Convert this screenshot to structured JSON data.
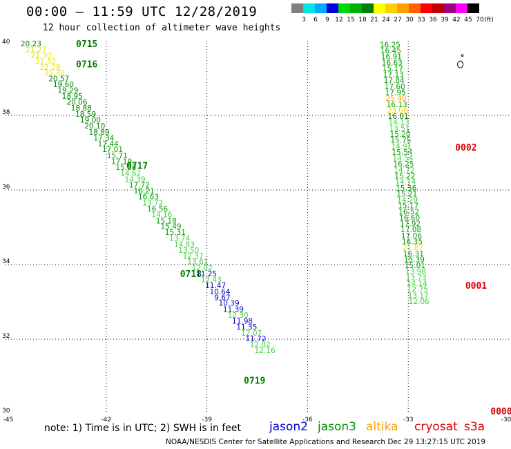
{
  "title": "00:00 – 11:59 UTC 12/28/2019",
  "subtitle": "12 hour collection of altimeter wave heights",
  "colorbar": {
    "unit": "(ft)",
    "ticks": [
      "3",
      "6",
      "9",
      "12",
      "15",
      "18",
      "21",
      "24",
      "27",
      "30",
      "33",
      "36",
      "39",
      "42",
      "45",
      "70"
    ],
    "colors": [
      "#7f7f7f",
      "#00e5e5",
      "#00a8ff",
      "#0000e0",
      "#00d800",
      "#00b000",
      "#008000",
      "#ffff00",
      "#ffd000",
      "#ffa000",
      "#ff6000",
      "#ff0000",
      "#c00000",
      "#a00080",
      "#ff00ff",
      "#000000"
    ]
  },
  "note": "note:  1) Time is in UTC;  2) SWH is in feet",
  "legend": [
    {
      "name": "jason2",
      "color": "#0000cc"
    },
    {
      "name": "jason3",
      "color": "#009000"
    },
    {
      "name": "altika",
      "color": "#ffa000"
    },
    {
      "name": "cryosat",
      "color": "#dd0000"
    },
    {
      "name": "s3a",
      "color": "#dd0000"
    }
  ],
  "credit": "NOAA/NESDIS Center for Satellite Applications and Research     Dec 29 13:27:15 UTC 2019",
  "chart_data": {
    "type": "scatter",
    "title": "00:00 – 11:59 UTC 12/28/2019",
    "xlim": [
      -45,
      -30
    ],
    "ylim": [
      30,
      40
    ],
    "x_ticks": [
      "-45",
      "-42",
      "-39",
      "-36",
      "-33",
      "-30"
    ],
    "y_ticks": [
      "40",
      "38",
      "36",
      "34",
      "32",
      "30"
    ],
    "grid": true,
    "tracks": [
      {
        "color_class": "green",
        "time_labels": [
          {
            "text": "0715",
            "lat": 39.93,
            "lon": -42.9,
            "color": "#008000"
          },
          {
            "text": "0716",
            "lat": 39.38,
            "lon": -42.9,
            "color": "#008000"
          },
          {
            "text": "0717",
            "lat": 36.66,
            "lon": -41.4,
            "color": "#008000"
          },
          {
            "text": "0718",
            "lat": 33.76,
            "lon": -39.8,
            "color": "#008000"
          },
          {
            "text": "0719",
            "lat": 30.9,
            "lon": -37.9,
            "color": "#008000"
          }
        ],
        "points": [
          {
            "lon": -44.55,
            "lat": 39.93,
            "v": "20.23",
            "c": "#008000"
          },
          {
            "lon": -44.4,
            "lat": 39.77,
            "v": "21.27",
            "c": "#e6e600"
          },
          {
            "lon": -44.25,
            "lat": 39.62,
            "v": "21.30",
            "c": "#e6e600"
          },
          {
            "lon": -44.12,
            "lat": 39.46,
            "v": "21.32",
            "c": "#e6e600"
          },
          {
            "lon": -43.98,
            "lat": 39.3,
            "v": "22.28",
            "c": "#e6e600"
          },
          {
            "lon": -43.85,
            "lat": 39.15,
            "v": "21.30",
            "c": "#e6e600"
          },
          {
            "lon": -43.72,
            "lat": 38.99,
            "v": "20.57",
            "c": "#008000"
          },
          {
            "lon": -43.58,
            "lat": 38.83,
            "v": "19.60",
            "c": "#008000"
          },
          {
            "lon": -43.45,
            "lat": 38.68,
            "v": "19.29",
            "c": "#008000"
          },
          {
            "lon": -43.32,
            "lat": 38.52,
            "v": "18.95",
            "c": "#008000"
          },
          {
            "lon": -43.18,
            "lat": 38.36,
            "v": "20.06",
            "c": "#008000"
          },
          {
            "lon": -43.05,
            "lat": 38.2,
            "v": "18.88",
            "c": "#008000"
          },
          {
            "lon": -42.92,
            "lat": 38.04,
            "v": "18.59",
            "c": "#008000"
          },
          {
            "lon": -42.78,
            "lat": 37.88,
            "v": "19.00",
            "c": "#008000"
          },
          {
            "lon": -42.65,
            "lat": 37.72,
            "v": "20.10",
            "c": "#008000"
          },
          {
            "lon": -42.52,
            "lat": 37.56,
            "v": "18.89",
            "c": "#008000"
          },
          {
            "lon": -42.38,
            "lat": 37.4,
            "v": "17.34",
            "c": "#00a000"
          },
          {
            "lon": -42.25,
            "lat": 37.24,
            "v": "17.44",
            "c": "#00a000"
          },
          {
            "lon": -42.12,
            "lat": 37.09,
            "v": "17.01",
            "c": "#00a000"
          },
          {
            "lon": -41.98,
            "lat": 36.93,
            "v": "15.71",
            "c": "#00a000"
          },
          {
            "lon": -41.85,
            "lat": 36.77,
            "v": "17.19",
            "c": "#00a000"
          },
          {
            "lon": -41.72,
            "lat": 36.61,
            "v": "15.58",
            "c": "#00a000"
          },
          {
            "lon": -41.58,
            "lat": 36.45,
            "v": "14.62",
            "c": "#40d040"
          },
          {
            "lon": -41.45,
            "lat": 36.29,
            "v": "14.39",
            "c": "#40d040"
          },
          {
            "lon": -41.32,
            "lat": 36.14,
            "v": "17.72",
            "c": "#00a000"
          },
          {
            "lon": -41.18,
            "lat": 35.98,
            "v": "16.21",
            "c": "#00a000"
          },
          {
            "lon": -41.05,
            "lat": 35.82,
            "v": "16.63",
            "c": "#00a000"
          },
          {
            "lon": -40.92,
            "lat": 35.66,
            "v": "13.72",
            "c": "#40d040"
          },
          {
            "lon": -40.78,
            "lat": 35.5,
            "v": "16.56",
            "c": "#00a000"
          },
          {
            "lon": -40.65,
            "lat": 35.34,
            "v": "14.16",
            "c": "#40d040"
          },
          {
            "lon": -40.52,
            "lat": 35.18,
            "v": "15.18",
            "c": "#00a000"
          },
          {
            "lon": -40.38,
            "lat": 35.03,
            "v": "15.49",
            "c": "#00a000"
          },
          {
            "lon": -40.25,
            "lat": 34.87,
            "v": "15.31",
            "c": "#00a000"
          },
          {
            "lon": -40.12,
            "lat": 34.71,
            "v": "13.74",
            "c": "#40d040"
          },
          {
            "lon": -39.98,
            "lat": 34.55,
            "v": "14.83",
            "c": "#40d040"
          },
          {
            "lon": -39.85,
            "lat": 34.39,
            "v": "13.50",
            "c": "#40d040"
          },
          {
            "lon": -39.72,
            "lat": 34.23,
            "v": "12.37",
            "c": "#40d040"
          },
          {
            "lon": -39.58,
            "lat": 34.08,
            "v": "13.61",
            "c": "#40d040"
          },
          {
            "lon": -39.45,
            "lat": 33.92,
            "v": "12.02",
            "c": "#40d040"
          },
          {
            "lon": -39.32,
            "lat": 33.76,
            "v": "11.25",
            "c": "#0000cc"
          },
          {
            "lon": -39.18,
            "lat": 33.6,
            "v": "12.43",
            "c": "#40d040"
          },
          {
            "lon": -39.05,
            "lat": 33.44,
            "v": "11.47",
            "c": "#0000cc"
          },
          {
            "lon": -38.92,
            "lat": 33.28,
            "v": "10.64",
            "c": "#0000cc"
          },
          {
            "lon": -38.78,
            "lat": 33.12,
            "v": "9.67",
            "c": "#0000cc"
          },
          {
            "lon": -38.65,
            "lat": 32.97,
            "v": "10.39",
            "c": "#0000cc"
          },
          {
            "lon": -38.52,
            "lat": 32.81,
            "v": "11.39",
            "c": "#0000cc"
          },
          {
            "lon": -38.38,
            "lat": 32.65,
            "v": "12.30",
            "c": "#40d040"
          },
          {
            "lon": -38.25,
            "lat": 32.49,
            "v": "11.98",
            "c": "#0000cc"
          },
          {
            "lon": -38.12,
            "lat": 32.33,
            "v": "11.35",
            "c": "#0000cc"
          },
          {
            "lon": -37.98,
            "lat": 32.17,
            "v": "12.07",
            "c": "#40d040"
          },
          {
            "lon": -37.85,
            "lat": 32.02,
            "v": "11.72",
            "c": "#0000cc"
          },
          {
            "lon": -37.72,
            "lat": 31.86,
            "v": "12.02",
            "c": "#40d040"
          },
          {
            "lon": -37.58,
            "lat": 31.7,
            "v": "12.16",
            "c": "#40d040"
          }
        ]
      },
      {
        "color_class": "mixed",
        "time_labels": [
          {
            "text": "0002",
            "lat": 37.15,
            "lon": -31.6,
            "color": "#dd0000"
          },
          {
            "text": "0001",
            "lat": 33.44,
            "lon": -31.3,
            "color": "#dd0000"
          },
          {
            "text": "0000",
            "lat": 30.07,
            "lon": -30.55,
            "color": "#dd0000"
          }
        ],
        "points": [
          {
            "lon": -33.85,
            "lat": 39.9,
            "v": "16.25",
            "c": "#00a000"
          },
          {
            "lon": -33.83,
            "lat": 39.74,
            "v": "16.45",
            "c": "#00a000"
          },
          {
            "lon": -33.81,
            "lat": 39.58,
            "v": "16.91",
            "c": "#00a000"
          },
          {
            "lon": -33.79,
            "lat": 39.42,
            "v": "16.63",
            "c": "#00a000"
          },
          {
            "lon": -33.77,
            "lat": 39.26,
            "v": "15.17",
            "c": "#00a000"
          },
          {
            "lon": -33.75,
            "lat": 39.1,
            "v": "17.13",
            "c": "#00a000"
          },
          {
            "lon": -33.73,
            "lat": 38.94,
            "v": "17.84",
            "c": "#00a000"
          },
          {
            "lon": -33.71,
            "lat": 38.78,
            "v": "17.60",
            "c": "#00a000"
          },
          {
            "lon": -33.69,
            "lat": 38.62,
            "v": "17.95",
            "c": "#00a000"
          },
          {
            "lon": -33.67,
            "lat": 38.46,
            "v": "25.40",
            "c": "#ffa000"
          },
          {
            "lon": -33.65,
            "lat": 38.3,
            "v": "16.13",
            "c": "#00a000"
          },
          {
            "lon": -33.63,
            "lat": 38.14,
            "v": "23.06",
            "c": "#ffd000"
          },
          {
            "lon": -33.61,
            "lat": 37.98,
            "v": "16.01",
            "c": "#008000"
          },
          {
            "lon": -33.59,
            "lat": 37.82,
            "v": "14.13",
            "c": "#40d040"
          },
          {
            "lon": -33.57,
            "lat": 37.66,
            "v": "13.51",
            "c": "#40d040"
          },
          {
            "lon": -33.55,
            "lat": 37.5,
            "v": "15.20",
            "c": "#00a000"
          },
          {
            "lon": -33.53,
            "lat": 37.34,
            "v": "15.75",
            "c": "#00a000"
          },
          {
            "lon": -33.51,
            "lat": 37.18,
            "v": "14.91",
            "c": "#40d040"
          },
          {
            "lon": -33.49,
            "lat": 37.02,
            "v": "15.54",
            "c": "#00a000"
          },
          {
            "lon": -33.47,
            "lat": 36.86,
            "v": "14.54",
            "c": "#40d040"
          },
          {
            "lon": -33.45,
            "lat": 36.7,
            "v": "16.25",
            "c": "#00a000"
          },
          {
            "lon": -33.43,
            "lat": 36.54,
            "v": "14.72",
            "c": "#40d040"
          },
          {
            "lon": -33.41,
            "lat": 36.38,
            "v": "15.22",
            "c": "#00a000"
          },
          {
            "lon": -33.39,
            "lat": 36.22,
            "v": "14.14",
            "c": "#40d040"
          },
          {
            "lon": -33.37,
            "lat": 36.06,
            "v": "15.36",
            "c": "#00a000"
          },
          {
            "lon": -33.35,
            "lat": 35.9,
            "v": "15.21",
            "c": "#00a000"
          },
          {
            "lon": -33.33,
            "lat": 35.74,
            "v": "14.29",
            "c": "#40d040"
          },
          {
            "lon": -33.31,
            "lat": 35.58,
            "v": "15.17",
            "c": "#00a000"
          },
          {
            "lon": -33.29,
            "lat": 35.42,
            "v": "16.52",
            "c": "#00a000"
          },
          {
            "lon": -33.27,
            "lat": 35.26,
            "v": "16.60",
            "c": "#00a000"
          },
          {
            "lon": -33.25,
            "lat": 35.1,
            "v": "17.92",
            "c": "#00a000"
          },
          {
            "lon": -33.23,
            "lat": 34.94,
            "v": "17.08",
            "c": "#00a000"
          },
          {
            "lon": -33.21,
            "lat": 34.78,
            "v": "17.06",
            "c": "#00a000"
          },
          {
            "lon": -33.19,
            "lat": 34.62,
            "v": "16.35",
            "c": "#00a000"
          },
          {
            "lon": -33.17,
            "lat": 34.46,
            "v": "21.87",
            "c": "#e6e600"
          },
          {
            "lon": -33.15,
            "lat": 34.3,
            "v": "16.31",
            "c": "#00a000"
          },
          {
            "lon": -33.13,
            "lat": 34.14,
            "v": "15.39",
            "c": "#00a000"
          },
          {
            "lon": -33.11,
            "lat": 33.98,
            "v": "15.01",
            "c": "#00a000"
          },
          {
            "lon": -33.09,
            "lat": 33.82,
            "v": "13.98",
            "c": "#40d040"
          },
          {
            "lon": -33.07,
            "lat": 33.66,
            "v": "13.73",
            "c": "#40d040"
          },
          {
            "lon": -33.05,
            "lat": 33.5,
            "v": "14.14",
            "c": "#40d040"
          },
          {
            "lon": -33.03,
            "lat": 33.34,
            "v": "12.75",
            "c": "#40d040"
          },
          {
            "lon": -33.01,
            "lat": 33.18,
            "v": "13.17",
            "c": "#40d040"
          },
          {
            "lon": -32.99,
            "lat": 33.02,
            "v": "12.06",
            "c": "#40d040"
          }
        ]
      }
    ],
    "land_feature_lon": -31.45,
    "land_feature_lat": 39.55
  }
}
